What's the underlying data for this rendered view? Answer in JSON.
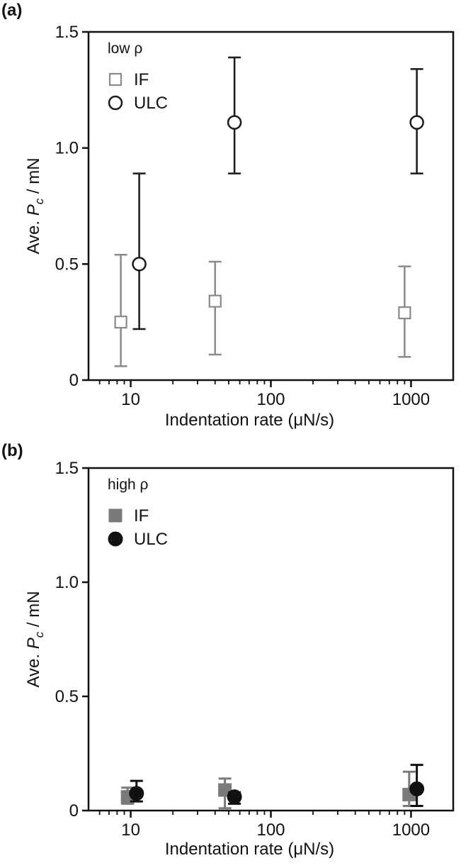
{
  "chart_data": [
    {
      "type": "scatter",
      "panel_label": "(a)",
      "legend_title": "low ρ",
      "xlabel": "Indentation rate (μN/s)",
      "ylabel_prefix": "Ave. ",
      "ylabel_var": "P",
      "ylabel_sub": "c",
      "ylabel_suffix": " / mN",
      "xscale": "log",
      "xlim": [
        5,
        2000
      ],
      "ylim": [
        0,
        1.5
      ],
      "xticks": [
        10,
        100,
        1000
      ],
      "xtick_labels": [
        "10",
        "100",
        "1000"
      ],
      "yticks": [
        0,
        0.5,
        1.0,
        1.5
      ],
      "ytick_labels": [
        "0",
        "0.5",
        "1.0",
        "1.5"
      ],
      "grid": false,
      "legend_position": "top-left",
      "series": [
        {
          "name": "IF",
          "marker": "open-square",
          "color": "#8a8a8a",
          "x": [
            8.5,
            40,
            900
          ],
          "y": [
            0.25,
            0.34,
            0.29
          ],
          "err_low": [
            0.06,
            0.11,
            0.1
          ],
          "err_high": [
            0.54,
            0.51,
            0.49
          ]
        },
        {
          "name": "ULC",
          "marker": "open-circle",
          "color": "#1a1a1a",
          "x": [
            11.5,
            55,
            1100
          ],
          "y": [
            0.5,
            1.11,
            1.11
          ],
          "err_low": [
            0.22,
            0.89,
            0.89
          ],
          "err_high": [
            0.89,
            1.39,
            1.34
          ]
        }
      ]
    },
    {
      "type": "scatter",
      "panel_label": "(b)",
      "legend_title": "high ρ",
      "xlabel": "Indentation rate (μN/s)",
      "ylabel_prefix": "Ave. ",
      "ylabel_var": "P",
      "ylabel_sub": "c",
      "ylabel_suffix": " / mN",
      "xscale": "log",
      "xlim": [
        5,
        2000
      ],
      "ylim": [
        0,
        1.5
      ],
      "xticks": [
        10,
        100,
        1000
      ],
      "xtick_labels": [
        "10",
        "100",
        "1000"
      ],
      "yticks": [
        0,
        0.5,
        1.0,
        1.5
      ],
      "ytick_labels": [
        "0",
        "0.5",
        "1.0",
        "1.5"
      ],
      "grid": false,
      "legend_position": "top-left",
      "series": [
        {
          "name": "IF",
          "marker": "filled-square",
          "color": "#7a7a7a",
          "x": [
            9.5,
            47,
            970
          ],
          "y": [
            0.06,
            0.09,
            0.07
          ],
          "err_low": [
            0.03,
            0.01,
            0.02
          ],
          "err_high": [
            0.1,
            0.14,
            0.17
          ]
        },
        {
          "name": "ULC",
          "marker": "filled-circle",
          "color": "#111111",
          "x": [
            11,
            55,
            1100
          ],
          "y": [
            0.075,
            0.06,
            0.095
          ],
          "err_low": [
            0.04,
            0.03,
            0.02
          ],
          "err_high": [
            0.13,
            0.08,
            0.2
          ]
        }
      ]
    }
  ]
}
